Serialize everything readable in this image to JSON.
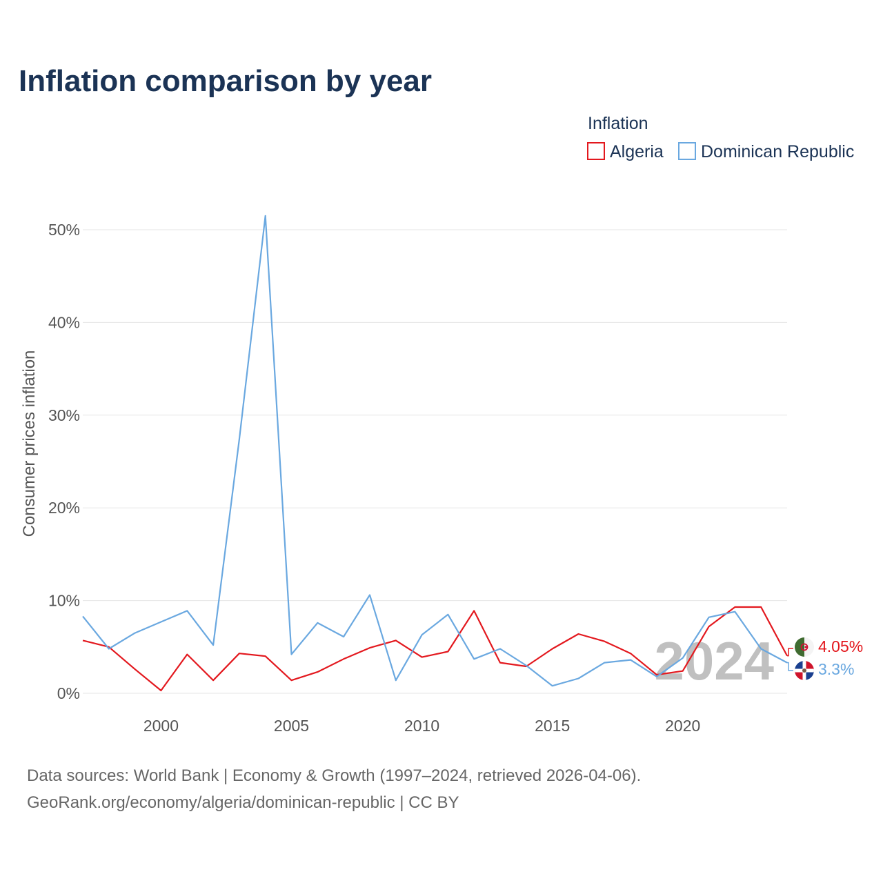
{
  "chart_data": {
    "type": "line",
    "title": "Inflation comparison by year",
    "legend_title": "Inflation",
    "legend_position": "top-right",
    "ylabel": "Consumer prices inflation",
    "xlabel": "",
    "xlim": [
      1997,
      2024
    ],
    "ylim": [
      0,
      52
    ],
    "y_ticks": [
      0,
      10,
      20,
      30,
      40,
      50
    ],
    "y_tick_labels": [
      "0%",
      "10%",
      "20%",
      "30%",
      "40%",
      "50%"
    ],
    "x_ticks": [
      2000,
      2005,
      2010,
      2015,
      2020
    ],
    "x_tick_labels": [
      "2000",
      "2005",
      "2010",
      "2015",
      "2020"
    ],
    "grid": true,
    "year_watermark": "2024",
    "x": [
      1997,
      1998,
      1999,
      2000,
      2001,
      2002,
      2003,
      2004,
      2005,
      2006,
      2007,
      2008,
      2009,
      2010,
      2011,
      2012,
      2013,
      2014,
      2015,
      2016,
      2017,
      2018,
      2019,
      2020,
      2021,
      2022,
      2023,
      2024
    ],
    "series": [
      {
        "name": "Algeria",
        "color": "#e3181e",
        "end_label": "4.05%",
        "values": [
          5.7,
          5.0,
          2.6,
          0.3,
          4.2,
          1.4,
          4.3,
          4.0,
          1.4,
          2.3,
          3.7,
          4.9,
          5.7,
          3.9,
          4.5,
          8.9,
          3.3,
          2.9,
          4.8,
          6.4,
          5.6,
          4.3,
          2.0,
          2.4,
          7.2,
          9.3,
          9.3,
          4.05
        ]
      },
      {
        "name": "Dominican Republic",
        "color": "#6aa8e0",
        "end_label": "3.3%",
        "values": [
          8.3,
          4.8,
          6.5,
          7.7,
          8.9,
          5.2,
          27.4,
          51.5,
          4.2,
          7.6,
          6.1,
          10.6,
          1.4,
          6.3,
          8.5,
          3.7,
          4.8,
          3.0,
          0.8,
          1.6,
          3.3,
          3.6,
          1.8,
          3.8,
          8.2,
          8.8,
          4.8,
          3.3
        ]
      }
    ]
  },
  "footer": {
    "source_line1": "Data sources: World Bank | Economy & Growth (1997–2024, retrieved 2026-04-06).",
    "source_line2": "GeoRank.org/economy/algeria/dominican-republic | CC BY"
  }
}
